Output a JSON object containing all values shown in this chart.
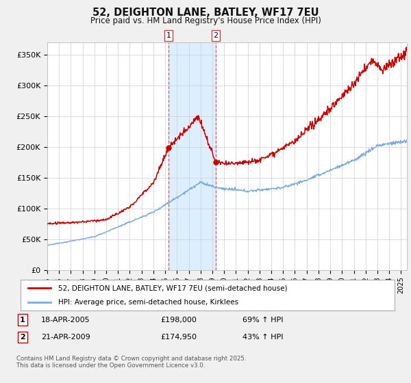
{
  "title": "52, DEIGHTON LANE, BATLEY, WF17 7EU",
  "subtitle": "Price paid vs. HM Land Registry's House Price Index (HPI)",
  "ylabel_ticks": [
    "£0",
    "£50K",
    "£100K",
    "£150K",
    "£200K",
    "£250K",
    "£300K",
    "£350K"
  ],
  "ytick_values": [
    0,
    50000,
    100000,
    150000,
    200000,
    250000,
    300000,
    350000
  ],
  "ylim": [
    0,
    370000
  ],
  "xlim_start": 1995.0,
  "xlim_end": 2025.5,
  "sale1_x": 2005.29,
  "sale1_y": 198000,
  "sale2_x": 2009.3,
  "sale2_y": 174950,
  "sale1_label": "18-APR-2005",
  "sale1_price": "£198,000",
  "sale1_hpi": "69% ↑ HPI",
  "sale2_label": "21-APR-2009",
  "sale2_price": "£174,950",
  "sale2_hpi": "43% ↑ HPI",
  "line1_color": "#cc0000",
  "line2_color": "#7aaadd",
  "highlight_color": "#ddeeff",
  "vline_color": "#cc4444",
  "legend_line1": "52, DEIGHTON LANE, BATLEY, WF17 7EU (semi-detached house)",
  "legend_line2": "HPI: Average price, semi-detached house, Kirklees",
  "footer": "Contains HM Land Registry data © Crown copyright and database right 2025.\nThis data is licensed under the Open Government Licence v3.0.",
  "background_color": "#f0f0f0",
  "plot_bg_color": "#ffffff"
}
